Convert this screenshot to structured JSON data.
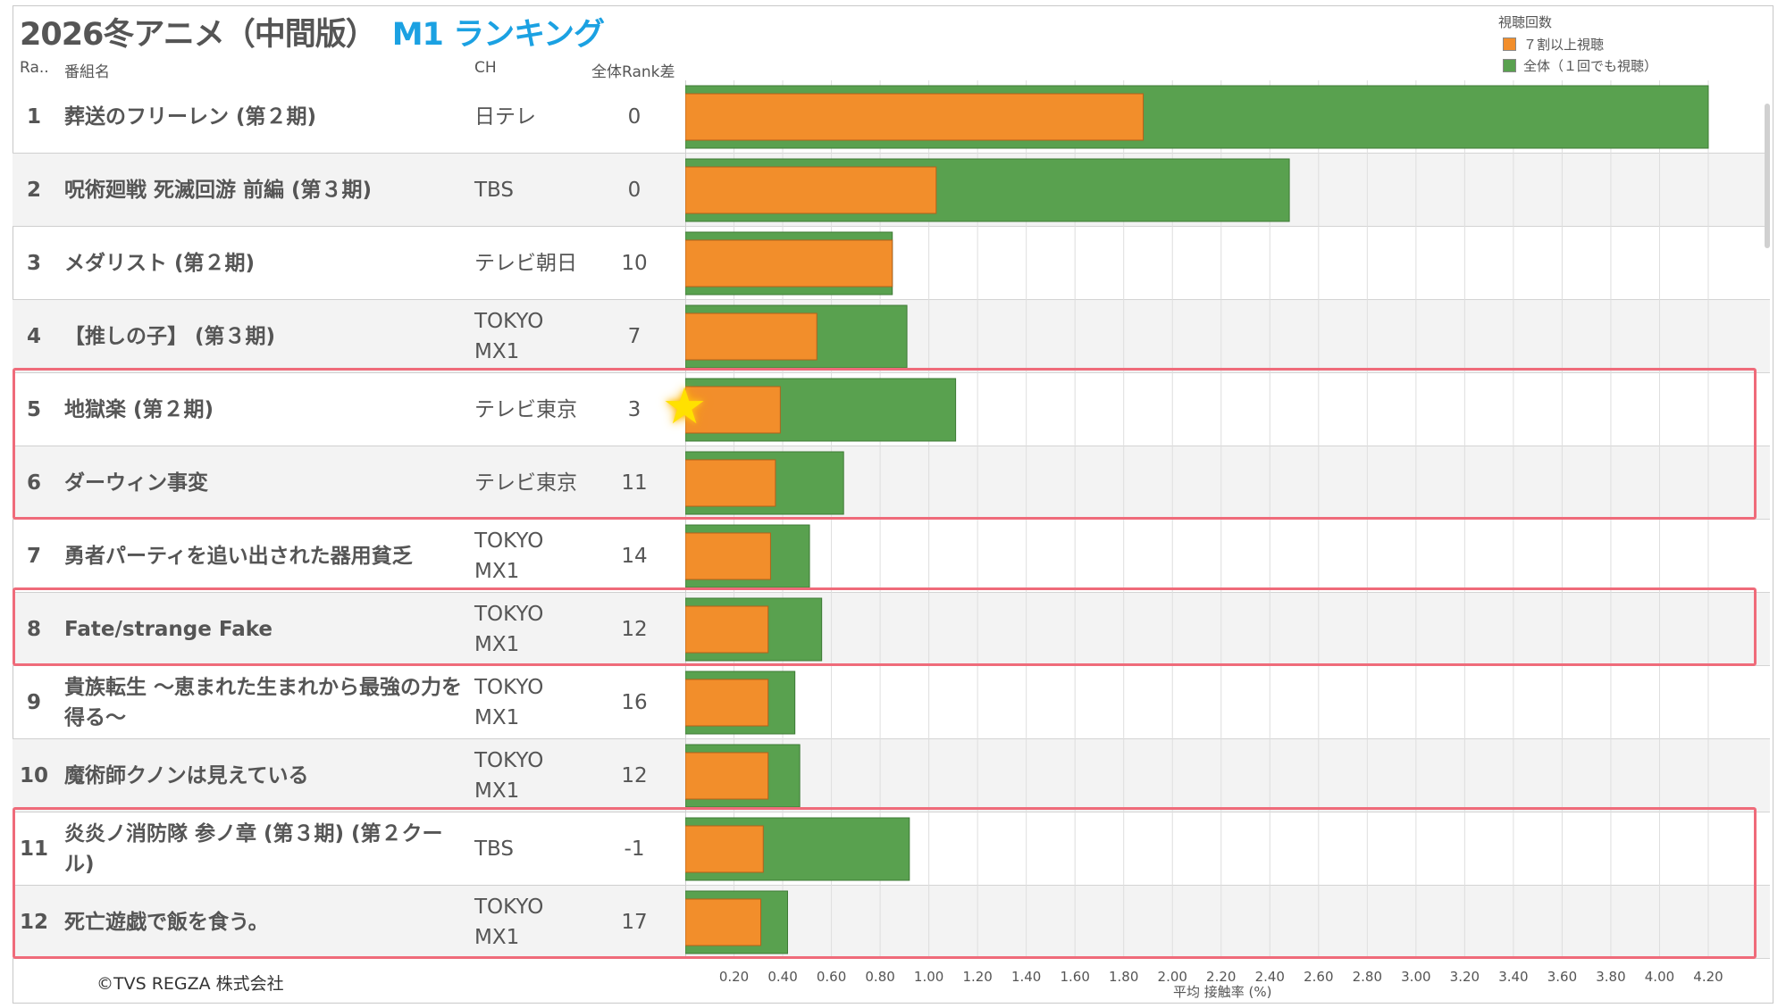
{
  "title": {
    "main": "2026冬アニメ（中間版）",
    "sub": "M1 ランキング"
  },
  "headers": {
    "rank": "Ra..",
    "name": "番組名",
    "ch": "CH",
    "diff": "全体Rank差"
  },
  "legend": {
    "title": "視聴回数",
    "items": [
      {
        "label": "７割以上視聴",
        "color": "#f28e2b"
      },
      {
        "label": "全体（１回でも視聴）",
        "color": "#59a14f"
      }
    ]
  },
  "rows": [
    {
      "rank": "1",
      "name": "葬送のフリーレン (第２期)",
      "ch": "日テレ",
      "diff": "0"
    },
    {
      "rank": "2",
      "name": "呪術廻戦 死滅回游 前編 (第３期)",
      "ch": "TBS",
      "diff": "0"
    },
    {
      "rank": "3",
      "name": "メダリスト (第２期)",
      "ch": "テレビ朝日",
      "diff": "10"
    },
    {
      "rank": "4",
      "name": "【推しの子】 (第３期)",
      "ch": "TOKYO MX1",
      "diff": "7"
    },
    {
      "rank": "5",
      "name": "地獄楽 (第２期)",
      "ch": "テレビ東京",
      "diff": "3"
    },
    {
      "rank": "6",
      "name": "ダーウィン事変",
      "ch": "テレビ東京",
      "diff": "11"
    },
    {
      "rank": "7",
      "name": "勇者パーティを追い出された器用貧乏",
      "ch": "TOKYO MX1",
      "diff": "14"
    },
    {
      "rank": "8",
      "name": "Fate/strange Fake",
      "ch": "TOKYO MX1",
      "diff": "12"
    },
    {
      "rank": "9",
      "name": "貴族転生 ～恵まれた生まれから最強の力を得る～",
      "ch": "TOKYO MX1",
      "diff": "16"
    },
    {
      "rank": "10",
      "name": "魔術師クノンは見えている",
      "ch": "TOKYO MX1",
      "diff": "12"
    },
    {
      "rank": "11",
      "name": "炎炎ノ消防隊 参ノ章 (第３期) (第２クール)",
      "ch": "TBS",
      "diff": "-1"
    },
    {
      "rank": "12",
      "name": "死亡遊戯で飯を食う。",
      "ch": "TOKYO MX1",
      "diff": "17"
    }
  ],
  "highlighted_ranks": [
    5,
    6,
    8,
    11,
    12
  ],
  "star_rank": 5,
  "chart_data": {
    "type": "bar",
    "orientation": "horizontal",
    "categories": [
      "1",
      "2",
      "3",
      "4",
      "5",
      "6",
      "7",
      "8",
      "9",
      "10",
      "11",
      "12"
    ],
    "series": [
      {
        "name": "全体（１回でも視聴）",
        "color": "#59a14f",
        "values": [
          4.2,
          2.48,
          0.85,
          0.91,
          1.11,
          0.65,
          0.51,
          0.56,
          0.45,
          0.47,
          0.92,
          0.42
        ]
      },
      {
        "name": "７割以上視聴",
        "color": "#f28e2b",
        "values": [
          1.88,
          1.03,
          0.85,
          0.54,
          0.39,
          0.37,
          0.35,
          0.34,
          0.34,
          0.34,
          0.32,
          0.31
        ]
      }
    ],
    "xlabel": "平均 接触率 (%)",
    "xlim": [
      0,
      4.4
    ],
    "xticks": [
      "0.20",
      "0.40",
      "0.60",
      "0.80",
      "1.00",
      "1.20",
      "1.40",
      "1.60",
      "1.80",
      "2.00",
      "2.20",
      "2.40",
      "2.60",
      "2.80",
      "3.00",
      "3.20",
      "3.40",
      "3.60",
      "3.80",
      "4.00",
      "4.20"
    ],
    "grid": true,
    "legend_position": "top-right"
  },
  "copyright": "©TVS REGZA 株式会社"
}
